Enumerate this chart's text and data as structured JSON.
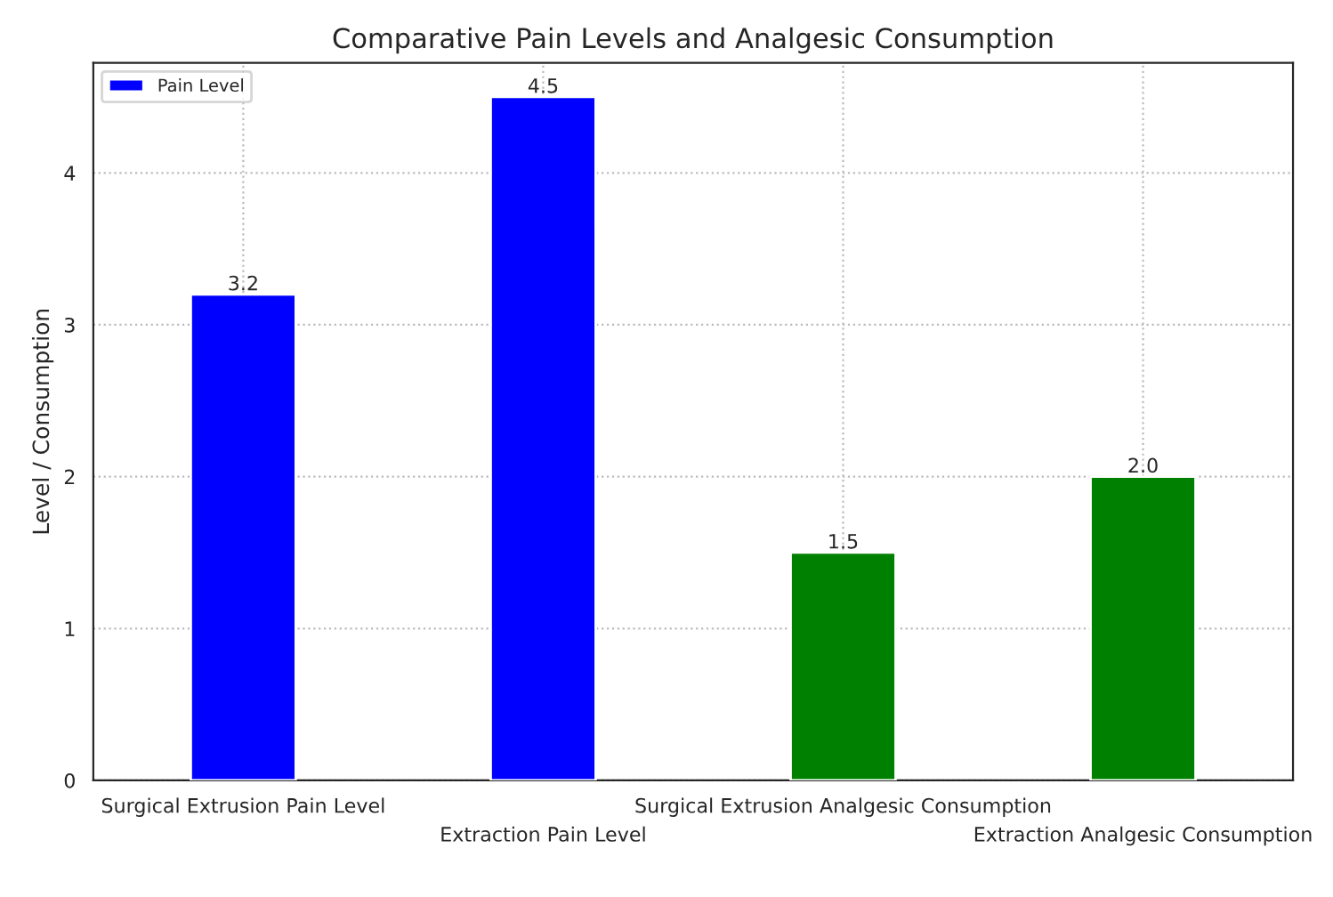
{
  "chart_data": {
    "type": "bar",
    "title": "Comparative Pain Levels and Analgesic Consumption",
    "ylabel": "Level / Consumption",
    "categories": [
      "Surgical Extrusion Pain Level",
      "Extraction Pain Level",
      "Surgical Extrusion Analgesic Consumption",
      "Extraction Analgesic Consumption"
    ],
    "series": [
      {
        "name": "Pain Level",
        "color": "#0000ff",
        "values": [
          3.2,
          4.5,
          null,
          null
        ],
        "value_labels": [
          "3.2",
          "4.5",
          null,
          null
        ]
      },
      {
        "color": "#008000",
        "values": [
          null,
          null,
          1.5,
          2.0
        ],
        "value_labels": [
          null,
          null,
          "1.5",
          "2.0"
        ]
      }
    ],
    "ylim": [
      0,
      4.725
    ],
    "yticks": [
      0,
      1,
      2,
      3,
      4
    ],
    "grid": true,
    "legend": "top left"
  }
}
